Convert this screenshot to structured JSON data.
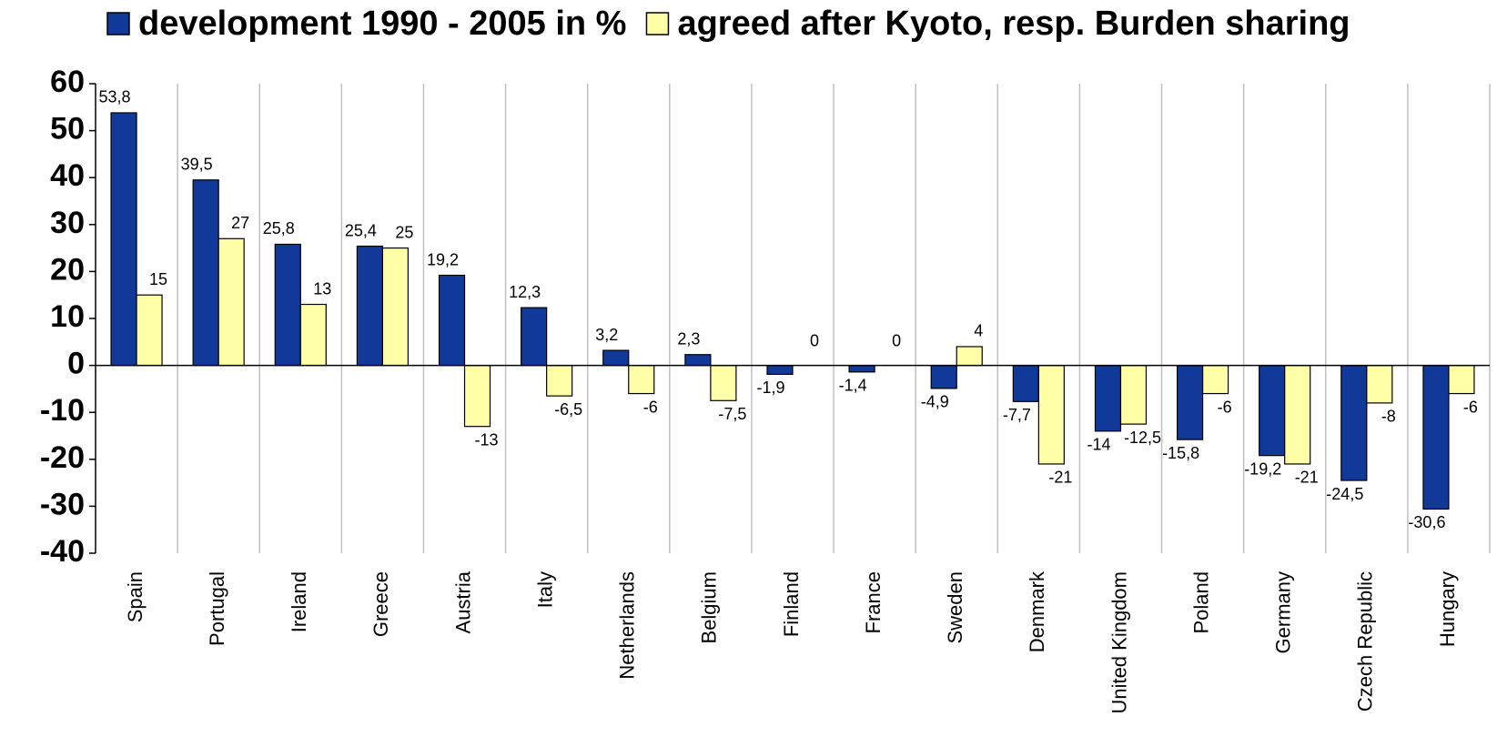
{
  "chart_data": {
    "type": "bar",
    "categories": [
      "Spain",
      "Portugal",
      "Ireland",
      "Greece",
      "Austria",
      "Italy",
      "Netherlands",
      "Belgium",
      "Finland",
      "France",
      "Sweden",
      "Denmark",
      "United Kingdom",
      "Poland",
      "Germany",
      "Czech Republic",
      "Hungary"
    ],
    "series": [
      {
        "name": "development 1990 - 2005 in %",
        "color": "#10399a",
        "values": [
          53.8,
          39.5,
          25.8,
          25.4,
          19.2,
          12.3,
          3.2,
          2.3,
          -1.9,
          -1.4,
          -4.9,
          -7.7,
          -14,
          -15.8,
          -19.2,
          -24.5,
          -30.6
        ],
        "value_labels": [
          "53,8",
          "39,5",
          "25,8",
          "25,4",
          "19,2",
          "12,3",
          "3,2",
          "2,3",
          "-1,9",
          "-1,4",
          "-4,9",
          "-7,7",
          "-14",
          "-15,8",
          "-19,2",
          "-24,5",
          "-30,6"
        ]
      },
      {
        "name": "agreed after Kyoto, resp. Burden sharing",
        "color": "#ffffa8",
        "values": [
          15,
          27,
          13,
          25,
          -13,
          -6.5,
          -6,
          -7.5,
          0,
          0,
          4,
          -21,
          -12.5,
          -6,
          -21,
          -8,
          -6
        ],
        "value_labels": [
          "15",
          "27",
          "13",
          "25",
          "-13",
          "-6,5",
          "-6",
          "-7,5",
          "0",
          "0",
          "4",
          "-21",
          "-12,5",
          "-6",
          "-21",
          "-8",
          "-6"
        ]
      }
    ],
    "ylim": [
      -40,
      60
    ],
    "yticks": [
      -40,
      -30,
      -20,
      -10,
      0,
      10,
      20,
      30,
      40,
      50,
      60
    ]
  }
}
